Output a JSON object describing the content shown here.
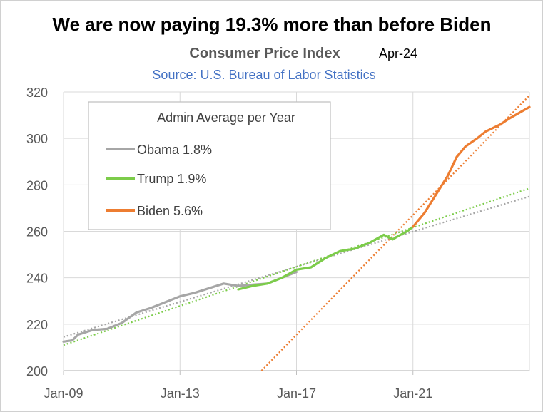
{
  "chart_data": {
    "type": "line",
    "headline": "We are now paying 19.3% more than before Biden",
    "title": "Consumer Price Index",
    "date_label": "Apr-24",
    "source": "Source: U.S. Bureau of Labor Statistics",
    "xlabel": "",
    "ylabel": "",
    "ylim": [
      200,
      320
    ],
    "yticks": [
      "200",
      "220",
      "240",
      "260",
      "280",
      "300",
      "320"
    ],
    "xlim": [
      2009.0,
      2025.0
    ],
    "xticks": [
      {
        "label": "Jan-09",
        "x": 2009.0
      },
      {
        "label": "Jan-13",
        "x": 2013.0
      },
      {
        "label": "Jan-17",
        "x": 2017.0
      },
      {
        "label": "Jan-21",
        "x": 2021.0
      }
    ],
    "grid": true,
    "legend": {
      "title": "Admin Average per Year",
      "placement": "top-left",
      "entries": [
        "Obama 1.8%",
        "Trump 1.9%",
        "Biden 5.6%"
      ]
    },
    "colors": {
      "obama": "#a6a6a6",
      "trump": "#7ccc4a",
      "biden": "#ed7d31",
      "grid": "#d9d9d9",
      "source": "#4472c4"
    },
    "series": [
      {
        "name": "Obama",
        "color": "#a6a6a6",
        "x": [
          2009.0,
          2009.3,
          2009.5,
          2010.0,
          2010.5,
          2011.0,
          2011.5,
          2012.0,
          2012.5,
          2013.0,
          2013.5,
          2014.0,
          2014.5,
          2015.0,
          2015.5,
          2016.0,
          2016.5,
          2017.0
        ],
        "y": [
          212.5,
          213.0,
          215.5,
          217.5,
          218.0,
          220.5,
          225.0,
          227.0,
          229.5,
          232.0,
          233.5,
          235.5,
          237.5,
          236.5,
          237.0,
          237.5,
          240.0,
          242.5
        ]
      },
      {
        "name": "Trump",
        "color": "#7ccc4a",
        "x": [
          2015.0,
          2015.5,
          2016.0,
          2016.5,
          2017.0,
          2017.5,
          2018.0,
          2018.5,
          2019.0,
          2019.5,
          2020.0,
          2020.3,
          2020.5,
          2020.8,
          2021.0
        ],
        "y": [
          235.0,
          236.5,
          237.5,
          240.0,
          243.5,
          244.5,
          248.5,
          251.5,
          252.5,
          255.0,
          258.5,
          256.5,
          258.0,
          260.0,
          262.0
        ]
      },
      {
        "name": "Biden",
        "color": "#ed7d31",
        "x": [
          2021.0,
          2021.4,
          2021.8,
          2022.2,
          2022.5,
          2022.8,
          2023.2,
          2023.5,
          2024.0,
          2024.3,
          2025.0
        ],
        "y": [
          262.0,
          268.0,
          276.0,
          284.0,
          292.0,
          296.5,
          300.0,
          303.0,
          306.0,
          308.5,
          313.5
        ]
      }
    ],
    "trendlines": [
      {
        "name": "Obama trend",
        "color": "#a6a6a6",
        "x": [
          2009.0,
          2025.0
        ],
        "y": [
          214.5,
          275.0
        ]
      },
      {
        "name": "Trump trend",
        "color": "#7ccc4a",
        "x": [
          2009.0,
          2025.0
        ],
        "y": [
          211.0,
          278.5
        ]
      },
      {
        "name": "Biden trend",
        "color": "#ed7d31",
        "x": [
          2015.8,
          2025.0
        ],
        "y": [
          200.0,
          318.5
        ]
      }
    ]
  }
}
